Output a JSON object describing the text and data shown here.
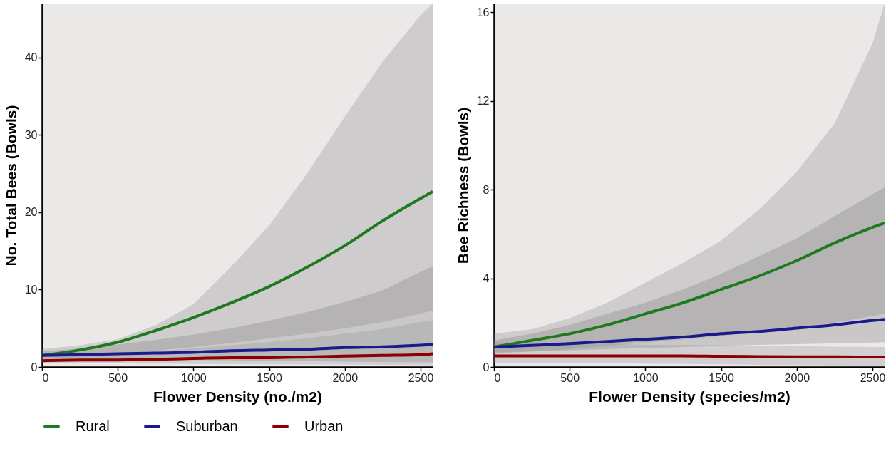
{
  "chart_data": [
    {
      "type": "line",
      "xlabel": "Flower Density (no./m2)",
      "ylabel": "No. Total Bees (Bowls)",
      "x": [
        0,
        250,
        500,
        750,
        1000,
        1250,
        1500,
        1750,
        2000,
        2250,
        2500,
        2580
      ],
      "xlim": [
        0,
        2580
      ],
      "xticks": [
        0,
        500,
        1000,
        1500,
        2000,
        2500
      ],
      "ylim": [
        0,
        47
      ],
      "yticks": [
        0,
        10,
        20,
        30,
        40
      ],
      "legend": "bottom",
      "series": [
        {
          "name": "Rural",
          "color": "#1e7a1e",
          "values": [
            1.5,
            2.2,
            3.2,
            4.7,
            6.4,
            8.3,
            10.4,
            12.9,
            15.7,
            18.9,
            21.8,
            22.7
          ],
          "lower": [
            1.0,
            1.3,
            1.7,
            2.1,
            2.6,
            3.1,
            3.7,
            4.3,
            5.0,
            5.8,
            6.9,
            7.3
          ],
          "upper": [
            2.3,
            2.8,
            3.6,
            5.4,
            8.1,
            13,
            18.3,
            25,
            32.4,
            39.5,
            45.5,
            47
          ]
        },
        {
          "name": "Suburban",
          "color": "#1a1a8c",
          "values": [
            1.5,
            1.6,
            1.7,
            1.8,
            1.9,
            2.1,
            2.2,
            2.3,
            2.5,
            2.6,
            2.8,
            2.9
          ],
          "lower": [
            1.1,
            1.05,
            1.0,
            0.95,
            0.9,
            0.85,
            0.8,
            0.75,
            0.7,
            0.65,
            0.6,
            0.6
          ],
          "upper": [
            2.0,
            2.4,
            2.9,
            3.5,
            4.2,
            5.0,
            6.0,
            7.1,
            8.4,
            9.9,
            12.3,
            13.0
          ]
        },
        {
          "name": "Urban",
          "color": "#8b0000",
          "values": [
            0.8,
            0.9,
            0.9,
            1.0,
            1.1,
            1.2,
            1.2,
            1.3,
            1.4,
            1.5,
            1.6,
            1.7
          ],
          "lower": [
            0.5,
            0.48,
            0.45,
            0.43,
            0.4,
            0.38,
            0.35,
            0.33,
            0.3,
            0.28,
            0.25,
            0.2
          ],
          "upper": [
            1.2,
            1.4,
            1.7,
            2.0,
            2.4,
            2.8,
            3.2,
            3.7,
            4.3,
            4.9,
            5.8,
            6.0
          ]
        }
      ]
    },
    {
      "type": "line",
      "xlabel": "Flower Density (species/m2)",
      "ylabel": "Bee Richness (Bowls)",
      "x": [
        0,
        250,
        500,
        750,
        1000,
        1250,
        1500,
        1750,
        2000,
        2250,
        2500,
        2580
      ],
      "xlim": [
        0,
        2580
      ],
      "xticks": [
        0,
        500,
        1000,
        1500,
        2000,
        2500
      ],
      "ylim": [
        0,
        16.4
      ],
      "yticks": [
        0,
        4,
        8,
        12,
        16
      ],
      "legend": "bottom",
      "series": [
        {
          "name": "Rural",
          "color": "#1e7a1e",
          "values": [
            0.9,
            1.2,
            1.5,
            1.9,
            2.4,
            2.9,
            3.5,
            4.1,
            4.8,
            5.6,
            6.3,
            6.5
          ],
          "lower": [
            0.6,
            0.7,
            0.8,
            0.95,
            1.1,
            1.25,
            1.4,
            1.6,
            1.8,
            2.0,
            2.3,
            2.4
          ],
          "upper": [
            1.5,
            1.7,
            2.2,
            2.9,
            3.8,
            4.7,
            5.7,
            7.1,
            8.8,
            11,
            14.6,
            16.4
          ]
        },
        {
          "name": "Suburban",
          "color": "#1a1a8c",
          "values": [
            0.9,
            0.97,
            1.05,
            1.15,
            1.25,
            1.35,
            1.5,
            1.6,
            1.75,
            1.9,
            2.1,
            2.15
          ],
          "lower": [
            0.65,
            0.7,
            0.75,
            0.8,
            0.85,
            0.9,
            0.95,
            1.0,
            1.03,
            1.07,
            1.1,
            1.12
          ],
          "upper": [
            1.2,
            1.5,
            1.9,
            2.4,
            2.9,
            3.5,
            4.2,
            5.0,
            5.8,
            6.8,
            7.8,
            8.1
          ]
        },
        {
          "name": "Urban",
          "color": "#8b0000",
          "values": [
            0.5,
            0.5,
            0.5,
            0.5,
            0.5,
            0.5,
            0.48,
            0.47,
            0.46,
            0.46,
            0.45,
            0.45
          ],
          "lower": [
            0.2,
            0.19,
            0.18,
            0.17,
            0.15,
            0.14,
            0.12,
            0.1,
            0.09,
            0.07,
            0.06,
            0.05
          ],
          "upper": [
            1.1,
            1.1,
            1.05,
            1.05,
            1.0,
            1.0,
            0.98,
            0.96,
            0.94,
            0.92,
            0.9,
            0.9
          ]
        }
      ]
    }
  ]
}
